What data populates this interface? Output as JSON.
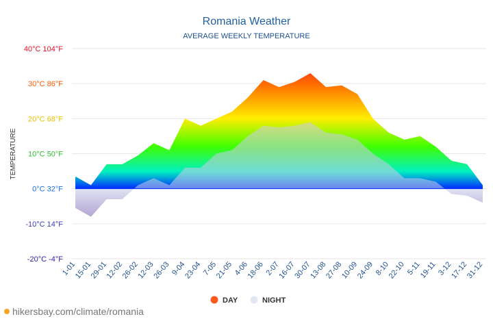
{
  "chart_data": {
    "type": "area",
    "title": "Romania Weather",
    "subtitle": "AVERAGE WEEKLY TEMPERATURE",
    "y_label": "TEMPERATURE",
    "source": "hikersbay.com/climate/romania",
    "categories": [
      "1-01",
      "15-01",
      "29-01",
      "12-02",
      "26-02",
      "12-03",
      "26-03",
      "9-04",
      "23-04",
      "7-05",
      "21-05",
      "4-06",
      "18-06",
      "2-07",
      "16-07",
      "30-07",
      "13-08",
      "27-08",
      "10-09",
      "24-09",
      "8-10",
      "22-10",
      "5-11",
      "19-11",
      "3-12",
      "17-12",
      "31-12"
    ],
    "series": [
      {
        "name": "DAY",
        "color": "#ff5a1f",
        "values": [
          3.5,
          1,
          7,
          7,
          9.5,
          13,
          11,
          20,
          18,
          20,
          22,
          26,
          31,
          29,
          30.5,
          33,
          29,
          29.5,
          27,
          20,
          16,
          14,
          15,
          12,
          8,
          7,
          1
        ]
      },
      {
        "name": "NIGHT",
        "color": "#e3e8f2",
        "values": [
          -5.5,
          -8,
          -3,
          -3,
          1,
          3,
          1,
          6,
          6,
          10,
          11,
          15,
          18,
          17.5,
          18,
          19,
          16,
          15.5,
          14,
          10,
          7,
          3,
          3,
          2,
          -1.5,
          -2,
          -4
        ]
      }
    ],
    "ylim": [
      -20,
      40
    ],
    "yticks": [
      {
        "value": -20,
        "label": "-20°C -4°F",
        "color": "#2b1fa8"
      },
      {
        "value": -10,
        "label": "-10°C 14°F",
        "color": "#3a3ac4"
      },
      {
        "value": 0,
        "label": "0°C 32°F",
        "color": "#1e6fe0"
      },
      {
        "value": 10,
        "label": "10°C 50°F",
        "color": "#2fbf2f"
      },
      {
        "value": 20,
        "label": "20°C 68°F",
        "color": "#e8c000"
      },
      {
        "value": 30,
        "label": "30°C 86°F",
        "color": "#ff5a00"
      },
      {
        "value": 40,
        "label": "40°C 104°F",
        "color": "#e8102a"
      }
    ],
    "grid": true
  }
}
